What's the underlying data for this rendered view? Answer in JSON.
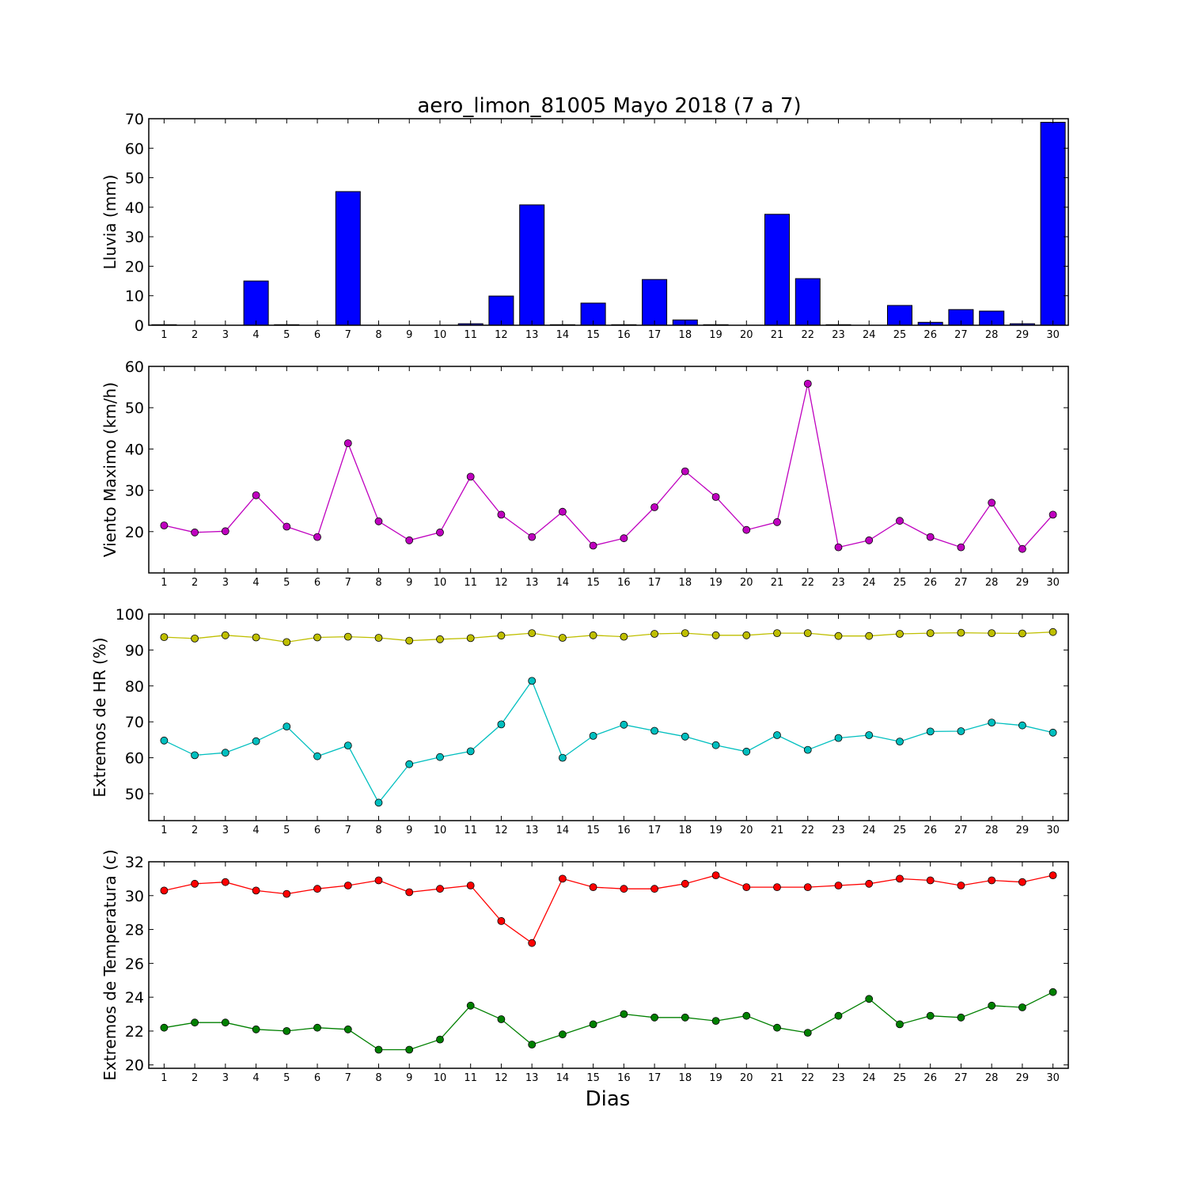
{
  "title": "aero_limon_81005 Mayo 2018  (7 a 7)",
  "xlabel": "Dias",
  "chart_data": [
    {
      "type": "bar",
      "ylabel": "Lluvia (mm)",
      "ylim": [
        0,
        70
      ],
      "yticks": [
        0,
        10,
        20,
        30,
        40,
        50,
        60,
        70
      ],
      "categories": [
        1,
        2,
        3,
        4,
        5,
        6,
        7,
        8,
        9,
        10,
        11,
        12,
        13,
        14,
        15,
        16,
        17,
        18,
        19,
        20,
        21,
        22,
        23,
        24,
        25,
        26,
        27,
        28,
        29,
        30
      ],
      "series": [
        {
          "color": "#0000ff",
          "values": [
            0.2,
            0,
            0,
            15,
            0.2,
            0,
            45.3,
            0,
            0,
            0,
            0.5,
            9.9,
            40.8,
            0.2,
            7.5,
            0.2,
            15.5,
            1.8,
            0.2,
            0,
            37.6,
            15.8,
            0.2,
            0,
            6.7,
            1,
            5.3,
            4.8,
            0.5,
            68.8
          ]
        }
      ]
    },
    {
      "type": "line",
      "ylabel": "Viento Maximo (km/h)",
      "ylim": [
        10,
        60
      ],
      "yticks": [
        20,
        30,
        40,
        50,
        60
      ],
      "x": [
        1,
        2,
        3,
        4,
        5,
        6,
        7,
        8,
        9,
        10,
        11,
        12,
        13,
        14,
        15,
        16,
        17,
        18,
        19,
        20,
        21,
        22,
        23,
        24,
        25,
        26,
        27,
        28,
        29,
        30
      ],
      "series": [
        {
          "color": "#bf00bf",
          "values": [
            21.5,
            19.8,
            20.1,
            28.8,
            21.2,
            18.7,
            41.4,
            22.5,
            17.9,
            19.8,
            33.3,
            24.1,
            18.7,
            24.8,
            16.6,
            18.4,
            25.9,
            34.6,
            28.4,
            20.4,
            22.3,
            55.8,
            16.2,
            17.9,
            22.6,
            18.7,
            16.2,
            27.0,
            15.8,
            24.1
          ]
        }
      ]
    },
    {
      "type": "line",
      "ylabel": "Extremos de HR (%)",
      "ylim": [
        42.5,
        100
      ],
      "yticks": [
        50,
        60,
        70,
        80,
        90,
        100
      ],
      "x": [
        1,
        2,
        3,
        4,
        5,
        6,
        7,
        8,
        9,
        10,
        11,
        12,
        13,
        14,
        15,
        16,
        17,
        18,
        19,
        20,
        21,
        22,
        23,
        24,
        25,
        26,
        27,
        28,
        29,
        30
      ],
      "series": [
        {
          "color": "#bfbf00",
          "values": [
            93.6,
            93.2,
            94.1,
            93.5,
            92.2,
            93.5,
            93.7,
            93.4,
            92.6,
            93.0,
            93.3,
            94.0,
            94.7,
            93.4,
            94.1,
            93.7,
            94.5,
            94.7,
            94.1,
            94.1,
            94.7,
            94.7,
            93.9,
            93.9,
            94.5,
            94.7,
            94.8,
            94.7,
            94.6,
            95.0
          ]
        },
        {
          "color": "#00bfbf",
          "values": [
            64.8,
            60.7,
            61.4,
            64.6,
            68.7,
            60.4,
            63.4,
            47.5,
            58.2,
            60.2,
            61.8,
            69.3,
            81.4,
            60.0,
            66.1,
            69.2,
            67.5,
            65.9,
            63.5,
            61.7,
            66.3,
            62.2,
            65.5,
            66.3,
            64.5,
            67.3,
            67.4,
            69.8,
            69.0,
            67.0
          ]
        }
      ]
    },
    {
      "type": "line",
      "ylabel": "Extremos de Temperatura (c)",
      "ylim": [
        19.8,
        32
      ],
      "yticks": [
        20,
        22,
        24,
        26,
        28,
        30,
        32
      ],
      "x": [
        1,
        2,
        3,
        4,
        5,
        6,
        7,
        8,
        9,
        10,
        11,
        12,
        13,
        14,
        15,
        16,
        17,
        18,
        19,
        20,
        21,
        22,
        23,
        24,
        25,
        26,
        27,
        28,
        29,
        30
      ],
      "series": [
        {
          "color": "#ff0000",
          "values": [
            30.3,
            30.7,
            30.8,
            30.3,
            30.1,
            30.4,
            30.6,
            30.9,
            30.2,
            30.4,
            30.6,
            28.5,
            27.2,
            31.0,
            30.5,
            30.4,
            30.4,
            30.7,
            31.2,
            30.5,
            30.5,
            30.5,
            30.6,
            30.7,
            31.0,
            30.9,
            30.6,
            30.9,
            30.8,
            31.2
          ]
        },
        {
          "color": "#008000",
          "values": [
            22.2,
            22.5,
            22.5,
            22.1,
            22.0,
            22.2,
            22.1,
            20.9,
            20.9,
            21.5,
            23.5,
            22.7,
            21.2,
            21.8,
            22.4,
            23.0,
            22.8,
            22.8,
            22.6,
            22.9,
            22.2,
            21.9,
            22.9,
            23.9,
            22.4,
            22.9,
            22.8,
            23.5,
            23.4,
            24.3
          ]
        }
      ]
    }
  ]
}
